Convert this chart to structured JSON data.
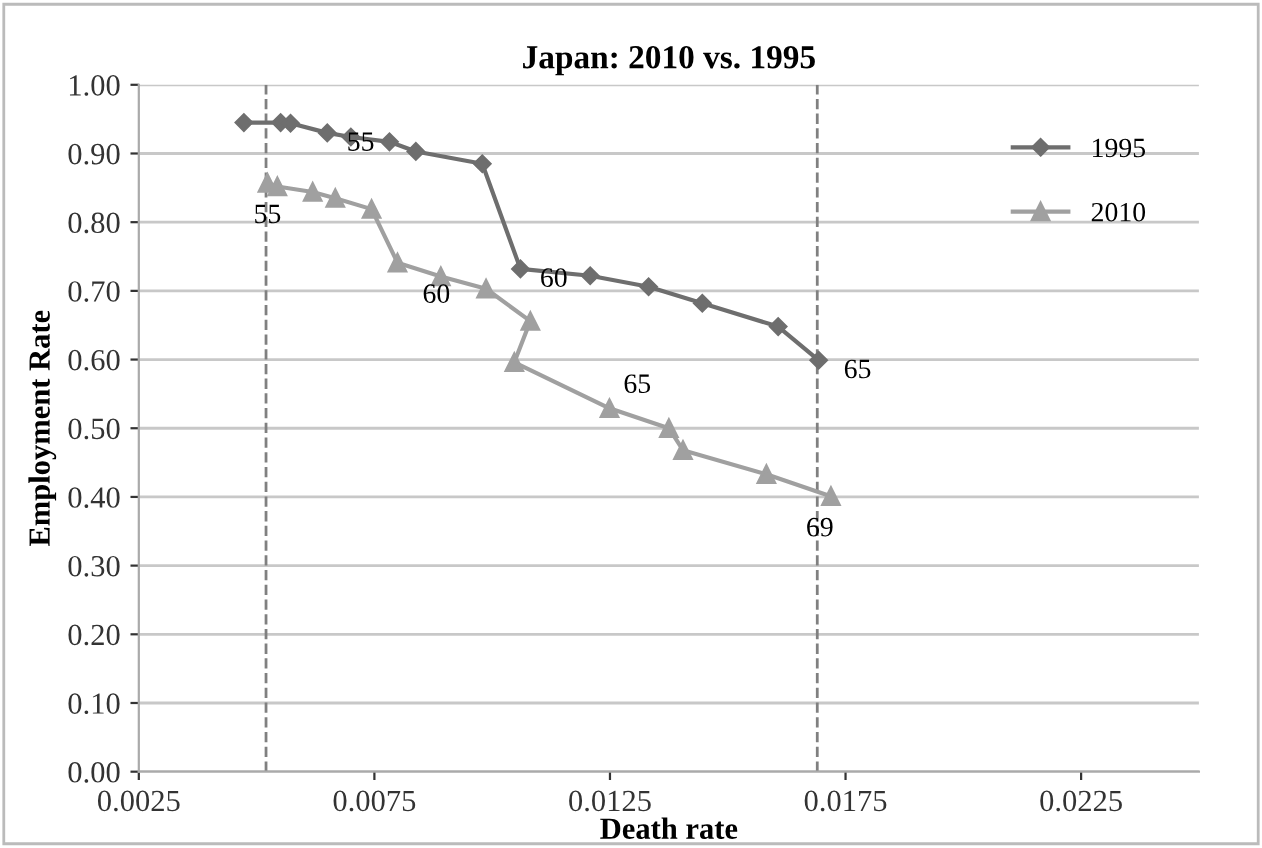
{
  "chart_data": {
    "type": "line",
    "title": "Japan: 2010 vs. 1995",
    "xlabel": "Death rate",
    "ylabel": "Employment Rate",
    "xlim": [
      0.0025,
      0.025
    ],
    "xticks": [
      {
        "value": 0.0025,
        "label": "0.0025"
      },
      {
        "value": 0.0075,
        "label": "0.0075"
      },
      {
        "value": 0.0125,
        "label": "0.0125"
      },
      {
        "value": 0.0175,
        "label": "0.0175"
      },
      {
        "value": 0.0225,
        "label": "0.0225"
      }
    ],
    "ylim": [
      0,
      1
    ],
    "yticks": [
      {
        "value": 0,
        "label": "0.00"
      },
      {
        "value": 0.1,
        "label": "0.10"
      },
      {
        "value": 0.2,
        "label": "0.20"
      },
      {
        "value": 0.3,
        "label": "0.30"
      },
      {
        "value": 0.4,
        "label": "0.40"
      },
      {
        "value": 0.5,
        "label": "0.50"
      },
      {
        "value": 0.6,
        "label": "0.60"
      },
      {
        "value": 0.7,
        "label": "0.70"
      },
      {
        "value": 0.8,
        "label": "0.80"
      },
      {
        "value": 0.9,
        "label": "0.90"
      },
      {
        "value": 1,
        "label": "1.00"
      }
    ],
    "grid": "y",
    "legend": "top right",
    "series": [
      {
        "name": "1995",
        "color": "#6e6e6e",
        "marker": "diamond",
        "x": [
          0.00473,
          0.00551,
          0.00572,
          0.0065,
          0.007,
          0.00782,
          0.00838,
          0.00979,
          0.0106,
          0.01208,
          0.01332,
          0.01446,
          0.01607,
          0.01693
        ],
        "values": [
          0.945,
          0.945,
          0.944,
          0.93,
          0.924,
          0.917,
          0.903,
          0.885,
          0.732,
          0.722,
          0.706,
          0.682,
          0.648,
          0.599
        ]
      },
      {
        "name": "2010",
        "color": "#a0a0a0",
        "marker": "triangle",
        "x": [
          0.00523,
          0.00544,
          0.00619,
          0.00667,
          0.00744,
          0.00799,
          0.00891,
          0.00987,
          0.01081,
          0.01047,
          0.01249,
          0.01375,
          0.01405,
          0.01582,
          0.01719
        ],
        "values": [
          0.857,
          0.852,
          0.844,
          0.835,
          0.819,
          0.741,
          0.721,
          0.703,
          0.656,
          0.596,
          0.529,
          0.5,
          0.468,
          0.433,
          0.401
        ]
      }
    ],
    "ref_lines": [
      {
        "axis": "x",
        "value": 0.0052,
        "color": "#808080",
        "line_style": "dashed"
      },
      {
        "axis": "x",
        "value": 0.0169,
        "color": "#808080",
        "line_style": "dashed"
      }
    ],
    "annotations": [
      {
        "text": "55",
        "x": 0.0065,
        "y": 0.93
      },
      {
        "text": "60",
        "x": 0.0106,
        "y": 0.732
      },
      {
        "text": "65",
        "x": 0.01693,
        "y": 0.599
      },
      {
        "text": "55",
        "x": 0.00523,
        "y": 0.857
      },
      {
        "text": "60",
        "x": 0.00799,
        "y": 0.741
      },
      {
        "text": "65",
        "x": 0.01249,
        "y": 0.529
      },
      {
        "text": "69",
        "x": 0.01719,
        "y": 0.401
      }
    ]
  }
}
